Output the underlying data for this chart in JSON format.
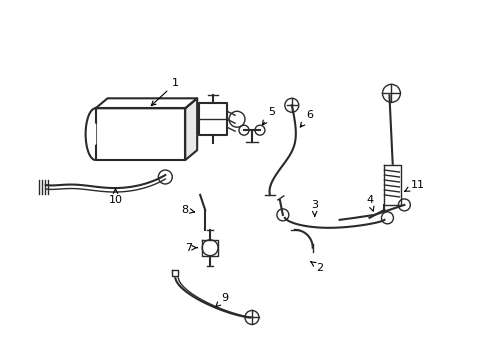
{
  "bg_color": "#ffffff",
  "line_color": "#2a2a2a",
  "label_color": "#000000",
  "figsize": [
    4.89,
    3.6
  ],
  "dpi": 100
}
